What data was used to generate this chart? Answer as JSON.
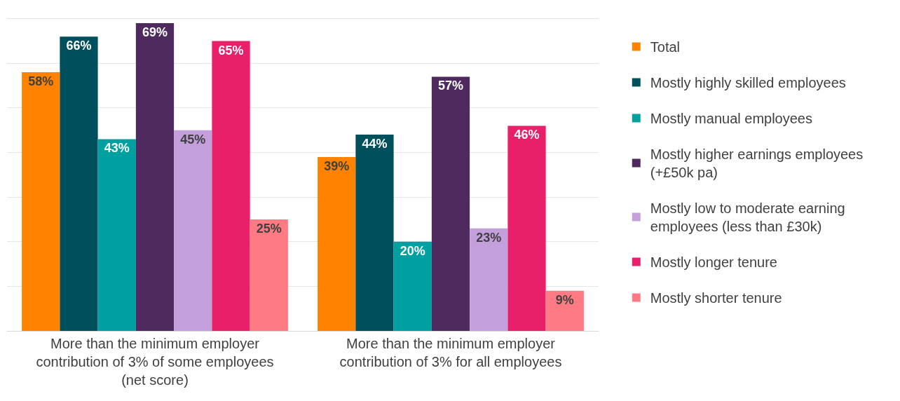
{
  "chart_data": {
    "type": "bar",
    "categories": [
      "More than the minimum employer contribution of 3% of some employees (net score)",
      "More than the minimum employer contribution of 3% for all employees"
    ],
    "series": [
      {
        "name": "Total",
        "color": "#ff8200",
        "values": [
          58,
          39
        ],
        "value_labels": [
          "58%",
          "39%"
        ]
      },
      {
        "name": "Mostly highly skilled employees",
        "color": "#004f5c",
        "values": [
          66,
          44
        ],
        "value_labels": [
          "66%",
          "44%"
        ]
      },
      {
        "name": "Mostly manual employees",
        "color": "#00a0a0",
        "values": [
          43,
          20
        ],
        "value_labels": [
          "43%",
          "20%"
        ]
      },
      {
        "name": "Mostly higher earnings employees (+£50k pa)",
        "color": "#4e2a5e",
        "values": [
          69,
          57
        ],
        "value_labels": [
          "69%",
          "57%"
        ]
      },
      {
        "name": "Mostly low to moderate earning employees (less than £30k)",
        "color": "#c39fdb",
        "values": [
          45,
          23
        ],
        "value_labels": [
          "45%",
          "23%"
        ]
      },
      {
        "name": "Mostly longer tenure",
        "color": "#e8206a",
        "values": [
          65,
          46
        ],
        "value_labels": [
          "65%",
          "46%"
        ]
      },
      {
        "name": "Mostly shorter tenure",
        "color": "#ff7b84",
        "values": [
          25,
          9
        ],
        "value_labels": [
          "25%",
          "9%"
        ]
      }
    ],
    "tick_labels": "x",
    "grid": "y",
    "legend": "right"
  }
}
